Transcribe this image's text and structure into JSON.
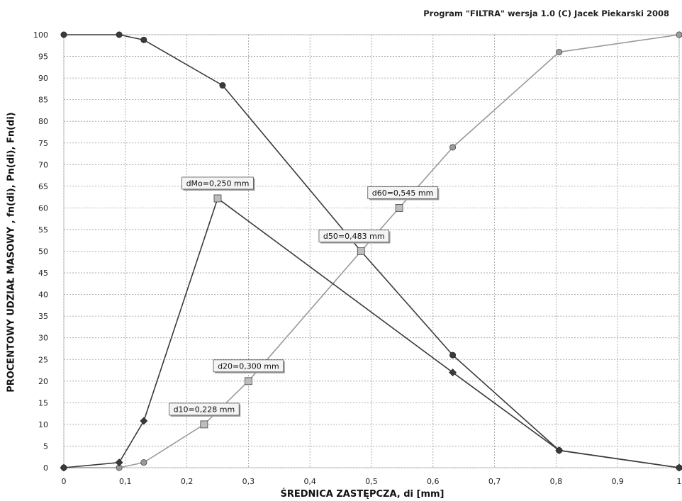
{
  "header": {
    "credit": "Program \"FILTRA\" wersja 1.0 (C) Jacek Piekarski 2008"
  },
  "chart_data": {
    "type": "line",
    "xlabel": "ŚREDNICA ZASTĘPCZA, di [mm]",
    "ylabel": "PROCENTOWY UDZIAŁ MASOWY , fn(di), Pn(di), Fn(di)",
    "xlim": [
      0,
      1
    ],
    "ylim": [
      0,
      100
    ],
    "xticks": [
      "0",
      "0,1",
      "0,2",
      "0,3",
      "0,4",
      "0,5",
      "0,6",
      "0,7",
      "0,8",
      "0,9",
      "1"
    ],
    "yticks": [
      "0",
      "5",
      "10",
      "15",
      "20",
      "25",
      "30",
      "35",
      "40",
      "45",
      "50",
      "55",
      "60",
      "65",
      "70",
      "75",
      "80",
      "85",
      "90",
      "95",
      "100"
    ],
    "grid": true,
    "series": [
      {
        "color": "#3a3a3a",
        "marker": "circle",
        "points": [
          [
            0,
            100
          ],
          [
            0.09,
            100
          ],
          [
            0.13,
            98.8
          ],
          [
            0.258,
            88.3
          ],
          [
            0.483,
            50
          ],
          [
            0.632,
            26
          ],
          [
            0.805,
            4
          ],
          [
            1,
            0
          ]
        ]
      },
      {
        "color": "#9a9a9a",
        "marker": "circle",
        "points": [
          [
            0,
            0
          ],
          [
            0.09,
            0
          ],
          [
            0.13,
            1.2
          ],
          [
            0.228,
            10
          ],
          [
            0.3,
            20
          ],
          [
            0.483,
            50
          ],
          [
            0.545,
            60
          ],
          [
            0.632,
            74
          ],
          [
            0.805,
            96
          ],
          [
            1,
            100
          ]
        ]
      },
      {
        "color": "#3a3a3a",
        "marker": "diamond",
        "points": [
          [
            0,
            0
          ],
          [
            0.09,
            1.2
          ],
          [
            0.13,
            10.8
          ],
          [
            0.25,
            62.2
          ],
          [
            0.632,
            22
          ],
          [
            0.805,
            4
          ],
          [
            1,
            0
          ]
        ]
      }
    ],
    "annotations": [
      {
        "text": "dMo=0,250 mm",
        "x": 0.25,
        "y": 62.2
      },
      {
        "text": "d60=0,545 mm",
        "x": 0.545,
        "y": 60
      },
      {
        "text": "d50=0,483 mm",
        "x": 0.483,
        "y": 50
      },
      {
        "text": "d20=0,300 mm",
        "x": 0.3,
        "y": 20
      },
      {
        "text": "d10=0,228 mm",
        "x": 0.228,
        "y": 10
      }
    ]
  }
}
